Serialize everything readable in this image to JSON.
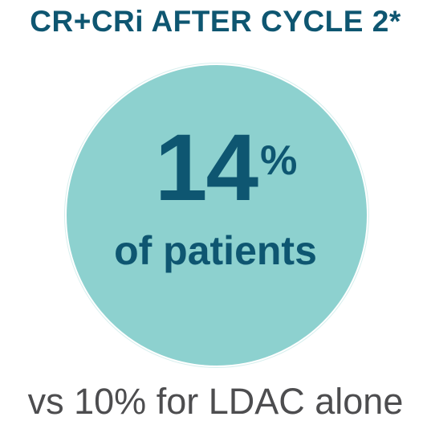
{
  "headline": "CR+CRi AFTER CYCLE 2*",
  "stat": {
    "value": "14",
    "unit": "%",
    "caption": "of patients"
  },
  "comparison": "vs 10% for LDAC alone",
  "colors": {
    "headline": "#0e5671",
    "circle_fill": "#8dd1cf",
    "stat_text": "#0e5671",
    "comparison_text": "#4d4d4f",
    "background": "#ffffff"
  }
}
